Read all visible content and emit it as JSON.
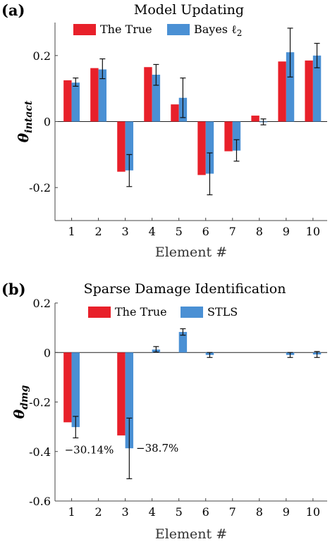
{
  "colors": {
    "true": "#e8202a",
    "est": "#4a90d4"
  },
  "chart_data": [
    {
      "panel": "(a)",
      "type": "bar",
      "title": "Model Updating",
      "xlabel": "Element #",
      "ylabel": "θ",
      "ylabel_sub": "intact",
      "ylim": [
        -0.3,
        0.3
      ],
      "yticks": [
        0.2,
        0,
        -0.2
      ],
      "ytick_labels": [
        "0.2",
        "0",
        "-0.2"
      ],
      "categories": [
        "1",
        "2",
        "3",
        "4",
        "5",
        "6",
        "7",
        "8",
        "9",
        "10"
      ],
      "legend": {
        "true_label": "The True",
        "est_label_main": "Bayes ℓ",
        "est_label_sub": "2",
        "position": "top"
      },
      "series": [
        {
          "name": "The True",
          "values": [
            0.125,
            0.162,
            -0.152,
            0.165,
            0.052,
            -0.162,
            -0.09,
            0.018,
            0.182,
            0.185
          ]
        },
        {
          "name": "Bayes ℓ2",
          "values": [
            0.118,
            0.158,
            -0.148,
            0.142,
            0.072,
            -0.158,
            -0.088,
            -0.002,
            0.21,
            0.2
          ],
          "error_low": [
            0.107,
            0.13,
            -0.197,
            0.11,
            0.012,
            -0.222,
            -0.12,
            -0.01,
            0.135,
            0.163
          ],
          "error_high": [
            0.132,
            0.19,
            -0.1,
            0.173,
            0.132,
            -0.095,
            -0.055,
            0.008,
            0.283,
            0.237
          ]
        }
      ],
      "annotations": []
    },
    {
      "panel": "(b)",
      "type": "bar",
      "title": "Sparse Damage Identification",
      "xlabel": "Element #",
      "ylabel": "θ",
      "ylabel_sub": "dmg",
      "ylim": [
        -0.6,
        0.2
      ],
      "yticks": [
        0.2,
        0,
        -0.2,
        -0.4,
        -0.6
      ],
      "ytick_labels": [
        "0.2",
        "0",
        "-0.2",
        "-0.4",
        "-0.6"
      ],
      "categories": [
        "1",
        "2",
        "3",
        "4",
        "5",
        "6",
        "7",
        "8",
        "9",
        "10"
      ],
      "legend": {
        "true_label": "The True",
        "est_label_main": "STLS",
        "est_label_sub": "",
        "position": "top"
      },
      "series": [
        {
          "name": "The True",
          "values": [
            -0.282,
            0,
            -0.335,
            0,
            0,
            0,
            0,
            0,
            0,
            0
          ]
        },
        {
          "name": "STLS",
          "values": [
            -0.3014,
            0,
            -0.387,
            0.012,
            0.083,
            -0.01,
            0,
            0,
            -0.01,
            -0.008
          ],
          "error_low": [
            -0.345,
            0,
            -0.51,
            0.002,
            0.07,
            -0.02,
            0,
            0,
            -0.02,
            -0.02
          ],
          "error_high": [
            -0.258,
            0,
            -0.265,
            0.024,
            0.096,
            0,
            0,
            0,
            0,
            0.004
          ]
        }
      ],
      "annotations": [
        {
          "category": "1",
          "text": "−30.14%"
        },
        {
          "category": "3",
          "text": "−38.7%"
        }
      ]
    }
  ]
}
